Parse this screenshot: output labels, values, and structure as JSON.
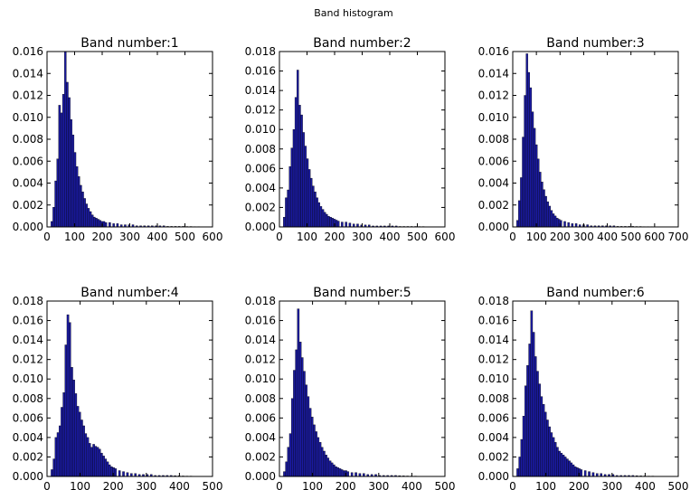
{
  "figure": {
    "title": "Band histogram",
    "bar_color": "#1a1aa0",
    "edge_color": "#000000"
  },
  "chart_data": [
    {
      "type": "bar",
      "title": "Band number:1",
      "xlim": [
        0,
        600
      ],
      "ylim": [
        0,
        0.016
      ],
      "xticks": [
        0,
        100,
        200,
        300,
        400,
        500,
        600
      ],
      "yticks": [
        0.0,
        0.002,
        0.004,
        0.006,
        0.008,
        0.01,
        0.012,
        0.014,
        0.016
      ],
      "bin_width": 7,
      "x": [
        14,
        21,
        28,
        35,
        42,
        49,
        56,
        63,
        70,
        77,
        84,
        91,
        98,
        105,
        112,
        119,
        126,
        133,
        140,
        147,
        154,
        161,
        168,
        175,
        182,
        189,
        196,
        203,
        210,
        224,
        238,
        252,
        266,
        280,
        294,
        308,
        322,
        336,
        350,
        364,
        378,
        392,
        406,
        420,
        434,
        448,
        462,
        476,
        490,
        504,
        518,
        532,
        546
      ],
      "values": [
        0.0005,
        0.0018,
        0.0042,
        0.0062,
        0.0111,
        0.0104,
        0.0121,
        0.016,
        0.0132,
        0.0118,
        0.0098,
        0.0084,
        0.0068,
        0.0055,
        0.0046,
        0.0038,
        0.0032,
        0.0026,
        0.0021,
        0.0017,
        0.0014,
        0.0011,
        0.0009,
        0.0008,
        0.0007,
        0.0006,
        0.0005,
        0.0005,
        0.0004,
        0.0004,
        0.0003,
        0.0003,
        0.0002,
        0.0002,
        0.0002,
        0.0002,
        0.0001,
        0.0001,
        0.0001,
        0.0001,
        0.0001,
        0.0001,
        0.0001,
        0.0001,
        5e-05,
        5e-05,
        5e-05,
        5e-05,
        5e-05,
        4e-05,
        4e-05,
        3e-05,
        3e-05
      ]
    },
    {
      "type": "bar",
      "title": "Band number:2",
      "xlim": [
        0,
        600
      ],
      "ylim": [
        0,
        0.018
      ],
      "xticks": [
        0,
        100,
        200,
        300,
        400,
        500,
        600
      ],
      "yticks": [
        0.0,
        0.002,
        0.004,
        0.006,
        0.008,
        0.01,
        0.012,
        0.014,
        0.016,
        0.018
      ],
      "bin_width": 7,
      "x": [
        14,
        21,
        28,
        35,
        42,
        49,
        56,
        63,
        70,
        77,
        84,
        91,
        98,
        105,
        112,
        119,
        126,
        133,
        140,
        147,
        154,
        161,
        168,
        175,
        182,
        189,
        196,
        203,
        210,
        224,
        238,
        252,
        266,
        280,
        294,
        308,
        322,
        336,
        350,
        364,
        378,
        392,
        406,
        420,
        434,
        448,
        462,
        476,
        490,
        504,
        518,
        532,
        546
      ],
      "values": [
        0.001,
        0.003,
        0.0038,
        0.0062,
        0.0081,
        0.01,
        0.0133,
        0.0161,
        0.0125,
        0.0115,
        0.0097,
        0.0083,
        0.007,
        0.0059,
        0.005,
        0.0042,
        0.0036,
        0.003,
        0.0025,
        0.0021,
        0.0018,
        0.0015,
        0.0013,
        0.0011,
        0.001,
        0.0009,
        0.0008,
        0.0007,
        0.0006,
        0.0005,
        0.0005,
        0.0004,
        0.0003,
        0.0003,
        0.0002,
        0.0002,
        0.0002,
        0.0001,
        0.0001,
        0.0001,
        0.0001,
        0.0001,
        0.0001,
        0.0001,
        5e-05,
        5e-05,
        5e-05,
        5e-05,
        5e-05,
        4e-05,
        4e-05,
        3e-05,
        3e-05
      ]
    },
    {
      "type": "bar",
      "title": "Band number:3",
      "xlim": [
        0,
        700
      ],
      "ylim": [
        0,
        0.016
      ],
      "xticks": [
        0,
        100,
        200,
        300,
        400,
        500,
        600,
        700
      ],
      "yticks": [
        0.0,
        0.002,
        0.004,
        0.006,
        0.008,
        0.01,
        0.012,
        0.014,
        0.016
      ],
      "bin_width": 8,
      "x": [
        16,
        24,
        32,
        40,
        48,
        56,
        64,
        72,
        80,
        88,
        96,
        104,
        112,
        120,
        128,
        136,
        144,
        152,
        160,
        168,
        176,
        184,
        192,
        200,
        216,
        232,
        248,
        264,
        280,
        296,
        312,
        328,
        344,
        360,
        376,
        392,
        408,
        424,
        440,
        456,
        472,
        488,
        504,
        520,
        536,
        552,
        568,
        584,
        600,
        616,
        632,
        648,
        664
      ],
      "values": [
        0.0006,
        0.0024,
        0.0045,
        0.0082,
        0.012,
        0.0158,
        0.0141,
        0.0127,
        0.0105,
        0.009,
        0.0075,
        0.0062,
        0.005,
        0.0041,
        0.0034,
        0.0028,
        0.0023,
        0.0019,
        0.0015,
        0.0012,
        0.001,
        0.0008,
        0.0007,
        0.0006,
        0.0005,
        0.0004,
        0.0003,
        0.0003,
        0.0002,
        0.0002,
        0.0002,
        0.0001,
        0.0001,
        0.0001,
        0.0001,
        0.0001,
        0.0001,
        0.0001,
        5e-05,
        5e-05,
        5e-05,
        5e-05,
        5e-05,
        4e-05,
        4e-05,
        3e-05,
        3e-05,
        3e-05,
        2e-05,
        2e-05,
        2e-05,
        2e-05,
        2e-05
      ]
    },
    {
      "type": "bar",
      "title": "Band number:4",
      "xlim": [
        0,
        500
      ],
      "ylim": [
        0,
        0.018
      ],
      "xticks": [
        0,
        100,
        200,
        300,
        400,
        500
      ],
      "yticks": [
        0.0,
        0.002,
        0.004,
        0.006,
        0.008,
        0.01,
        0.012,
        0.014,
        0.016,
        0.018
      ],
      "bin_width": 6,
      "x": [
        12,
        18,
        24,
        30,
        36,
        42,
        48,
        54,
        60,
        66,
        72,
        78,
        84,
        90,
        96,
        102,
        108,
        114,
        120,
        126,
        132,
        138,
        144,
        150,
        156,
        162,
        168,
        174,
        180,
        186,
        192,
        198,
        204,
        216,
        228,
        240,
        252,
        264,
        276,
        288,
        300,
        312,
        324,
        336,
        348,
        360,
        372,
        384,
        396,
        408,
        420,
        432,
        444
      ],
      "values": [
        0.0007,
        0.0018,
        0.004,
        0.0045,
        0.0052,
        0.0071,
        0.0086,
        0.0135,
        0.0166,
        0.0158,
        0.0112,
        0.0099,
        0.0085,
        0.0072,
        0.0066,
        0.0058,
        0.0052,
        0.0044,
        0.004,
        0.0034,
        0.003,
        0.0033,
        0.0031,
        0.003,
        0.0028,
        0.0024,
        0.0021,
        0.0018,
        0.0015,
        0.0012,
        0.001,
        0.0009,
        0.0008,
        0.0006,
        0.0005,
        0.0004,
        0.0003,
        0.0003,
        0.0002,
        0.0002,
        0.0002,
        0.0002,
        0.0001,
        0.0001,
        0.0001,
        0.0001,
        0.0001,
        8e-05,
        6e-05,
        5e-05,
        4e-05,
        4e-05,
        3e-05
      ]
    },
    {
      "type": "bar",
      "title": "Band number:5",
      "xlim": [
        0,
        500
      ],
      "ylim": [
        0,
        0.018
      ],
      "xticks": [
        0,
        100,
        200,
        300,
        400,
        500
      ],
      "yticks": [
        0.0,
        0.002,
        0.004,
        0.006,
        0.008,
        0.01,
        0.012,
        0.014,
        0.016,
        0.018
      ],
      "bin_width": 6,
      "x": [
        12,
        18,
        24,
        30,
        36,
        42,
        48,
        54,
        60,
        66,
        72,
        78,
        84,
        90,
        96,
        102,
        108,
        114,
        120,
        126,
        132,
        138,
        144,
        150,
        156,
        162,
        168,
        174,
        180,
        186,
        192,
        198,
        204,
        216,
        228,
        240,
        252,
        264,
        276,
        288,
        300,
        312,
        324,
        336,
        348,
        360,
        372,
        384,
        396,
        408,
        420,
        432,
        444
      ],
      "values": [
        0.0005,
        0.0015,
        0.003,
        0.0044,
        0.008,
        0.0109,
        0.013,
        0.0172,
        0.0138,
        0.0122,
        0.0108,
        0.0094,
        0.0082,
        0.007,
        0.0061,
        0.0053,
        0.0046,
        0.004,
        0.0035,
        0.003,
        0.0026,
        0.0022,
        0.0019,
        0.0016,
        0.0014,
        0.0012,
        0.001,
        0.0009,
        0.0008,
        0.0007,
        0.0006,
        0.0006,
        0.0005,
        0.0004,
        0.0004,
        0.0003,
        0.0003,
        0.0002,
        0.0002,
        0.0002,
        0.0001,
        0.0001,
        0.0001,
        0.0001,
        0.0001,
        8e-05,
        6e-05,
        5e-05,
        4e-05,
        4e-05,
        3e-05,
        3e-05,
        2e-05
      ]
    },
    {
      "type": "bar",
      "title": "Band number:6",
      "xlim": [
        0,
        500
      ],
      "ylim": [
        0,
        0.018
      ],
      "xticks": [
        0,
        100,
        200,
        300,
        400,
        500
      ],
      "yticks": [
        0.0,
        0.002,
        0.004,
        0.006,
        0.008,
        0.01,
        0.012,
        0.014,
        0.016,
        0.018
      ],
      "bin_width": 6,
      "x": [
        12,
        18,
        24,
        30,
        36,
        42,
        48,
        54,
        60,
        66,
        72,
        78,
        84,
        90,
        96,
        102,
        108,
        114,
        120,
        126,
        132,
        138,
        144,
        150,
        156,
        162,
        168,
        174,
        180,
        186,
        192,
        198,
        204,
        216,
        228,
        240,
        252,
        264,
        276,
        288,
        300,
        312,
        324,
        336,
        348,
        360,
        372,
        384,
        396,
        408,
        420,
        432,
        444
      ],
      "values": [
        0.0008,
        0.002,
        0.0038,
        0.0062,
        0.0093,
        0.0114,
        0.0136,
        0.017,
        0.0148,
        0.0123,
        0.0108,
        0.0095,
        0.0082,
        0.0074,
        0.0066,
        0.0058,
        0.0051,
        0.0045,
        0.004,
        0.0035,
        0.003,
        0.0026,
        0.0024,
        0.0022,
        0.002,
        0.0018,
        0.0016,
        0.0014,
        0.0012,
        0.001,
        0.0009,
        0.0008,
        0.0007,
        0.0006,
        0.0005,
        0.0004,
        0.0003,
        0.0003,
        0.0002,
        0.0002,
        0.0002,
        0.0001,
        0.0001,
        0.0001,
        0.0001,
        0.0001,
        8e-05,
        6e-05,
        5e-05,
        4e-05,
        4e-05,
        3e-05,
        3e-05
      ]
    }
  ]
}
